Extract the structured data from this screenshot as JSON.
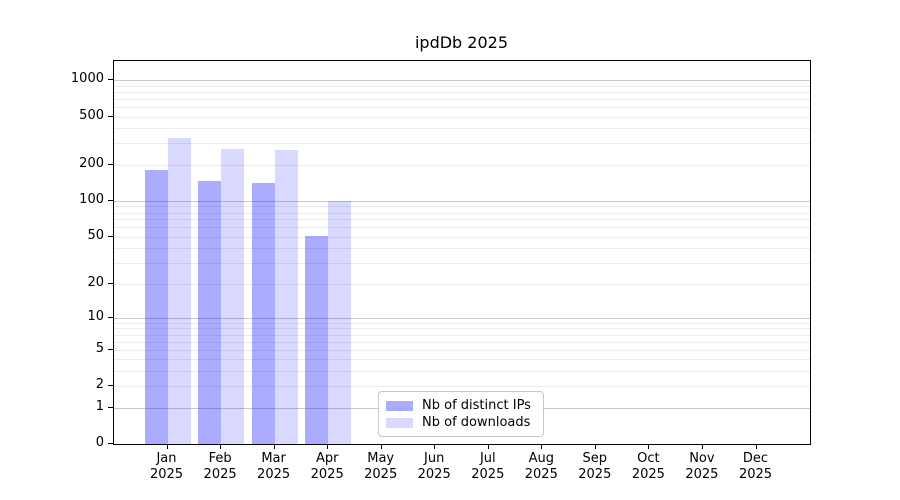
{
  "title": "ipdDb 2025",
  "chart_data": {
    "type": "bar",
    "title": "ipdDb 2025",
    "categories": [
      "Jan",
      "Feb",
      "Mar",
      "Apr",
      "May",
      "Jun",
      "Jul",
      "Aug",
      "Sep",
      "Oct",
      "Nov",
      "Dec"
    ],
    "x_tick_year": "2025",
    "series": [
      {
        "name": "Nb of distinct IPs",
        "color": "#0000ff54",
        "values": [
          181,
          147,
          140,
          51,
          null,
          null,
          null,
          null,
          null,
          null,
          null,
          null
        ]
      },
      {
        "name": "Nb of downloads",
        "color": "#0000ff26",
        "values": [
          332,
          271,
          263,
          100,
          null,
          null,
          null,
          null,
          null,
          null,
          null,
          null
        ]
      }
    ],
    "y_scale": "log10(1+x)",
    "y_ticks": [
      0,
      1,
      2,
      5,
      10,
      20,
      50,
      100,
      200,
      500,
      1000
    ],
    "y_major_gridlines": [
      1,
      10,
      100,
      1000
    ],
    "ylim": [
      0,
      1430
    ],
    "grid": true,
    "legend": {
      "position": "lower-center-inside"
    },
    "colors": {
      "major_grid": "#c9c9c9",
      "minor_grid": "#ececec",
      "axis": "#000000"
    }
  }
}
